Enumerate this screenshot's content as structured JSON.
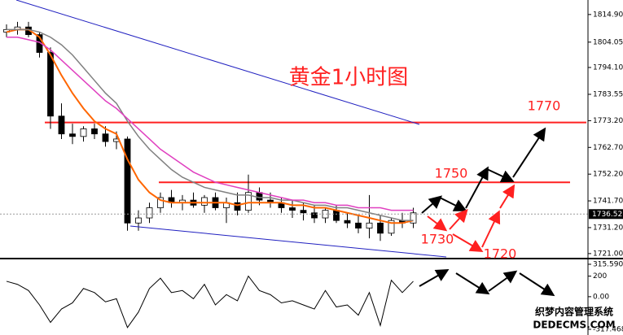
{
  "chart_data": [
    {
      "type": "candlestick",
      "title": "黄金1小时图",
      "open": [
        1808,
        1809,
        1810,
        1807,
        1800,
        1775,
        1768,
        1767,
        1770,
        1768,
        1765,
        1766,
        1733,
        1735,
        1739,
        1743,
        1741,
        1742,
        1740,
        1743,
        1739,
        1741,
        1738,
        1745,
        1742,
        1741,
        1739,
        1738,
        1737,
        1735,
        1738,
        1734,
        1733,
        1731,
        1733,
        1729,
        1734,
        1733
      ],
      "high": [
        1811,
        1812,
        1812,
        1808,
        1802,
        1780,
        1772,
        1771,
        1772,
        1771,
        1769,
        1767,
        1738,
        1741,
        1745,
        1746,
        1744,
        1745,
        1744,
        1745,
        1743,
        1745,
        1752,
        1747,
        1745,
        1743,
        1742,
        1741,
        1740,
        1739,
        1740,
        1737,
        1736,
        1744,
        1736,
        1735,
        1737,
        1739
      ],
      "low": [
        1806,
        1807,
        1806,
        1798,
        1770,
        1766,
        1764,
        1765,
        1766,
        1763,
        1762,
        1730,
        1730,
        1733,
        1737,
        1739,
        1738,
        1739,
        1737,
        1738,
        1733,
        1736,
        1737,
        1740,
        1739,
        1737,
        1735,
        1734,
        1733,
        1733,
        1733,
        1731,
        1729,
        1727,
        1726,
        1728,
        1731,
        1731
      ],
      "close": [
        1809,
        1810,
        1807,
        1800,
        1775,
        1768,
        1767,
        1770,
        1768,
        1765,
        1766,
        1733,
        1735,
        1739,
        1743,
        1741,
        1742,
        1740,
        1743,
        1739,
        1741,
        1738,
        1745,
        1742,
        1741,
        1739,
        1738,
        1737,
        1735,
        1738,
        1734,
        1733,
        1731,
        1733,
        1729,
        1734,
        1733,
        1737
      ],
      "up_color": "#ffffff",
      "down_color": "#000000",
      "outline_color": "#000000",
      "overlays": [
        {
          "color": "#ff6600",
          "values": [
            1808,
            1809,
            1809,
            1806,
            1799,
            1791,
            1784,
            1778,
            1773,
            1770,
            1768,
            1758,
            1750,
            1745,
            1742,
            1741,
            1741,
            1741,
            1741,
            1741,
            1741,
            1740,
            1741,
            1741,
            1741,
            1741,
            1740,
            1740,
            1739,
            1739,
            1738,
            1737,
            1736,
            1735,
            1734,
            1733,
            1733,
            1734
          ]
        },
        {
          "color": "#808080",
          "values": [
            1809,
            1809,
            1809,
            1808,
            1806,
            1803,
            1799,
            1794,
            1789,
            1784,
            1780,
            1773,
            1767,
            1762,
            1758,
            1754,
            1751,
            1749,
            1747,
            1746,
            1745,
            1744,
            1744,
            1743,
            1743,
            1742,
            1742,
            1741,
            1740,
            1740,
            1739,
            1739,
            1738,
            1737,
            1736,
            1735,
            1734,
            1734
          ]
        },
        {
          "color": "#e040c0",
          "values": [
            1806,
            1806,
            1805,
            1804,
            1801,
            1797,
            1793,
            1789,
            1785,
            1781,
            1778,
            1774,
            1770,
            1766,
            1762,
            1759,
            1756,
            1753,
            1751,
            1749,
            1748,
            1747,
            1746,
            1745,
            1744,
            1743,
            1742,
            1742,
            1741,
            1741,
            1740,
            1740,
            1739,
            1739,
            1739,
            1738,
            1738,
            1738
          ]
        }
      ],
      "levels": [
        {
          "value": 1772.5,
          "color": "#ff2020"
        },
        {
          "value": 1749,
          "color": "#ff2020"
        }
      ],
      "last_price": 1736.52,
      "ylim": [
        1720,
        1820.6
      ],
      "yticks": [
        {
          "value": 1814.9,
          "label": "1814.90"
        },
        1804.05,
        {
          "value": 1794.1,
          "label": "1794.10"
        },
        1783.55,
        {
          "value": 1773.2,
          "label": "1773.20"
        },
        {
          "value": 1762.7,
          "label": "1762.70"
        },
        {
          "value": 1752.2,
          "label": "1752.20"
        },
        {
          "value": 1741.7,
          "label": "1741.70"
        },
        {
          "value": 1731.2,
          "label": "1731.20"
        },
        {
          "value": 1721,
          "label": "1721.00"
        }
      ],
      "annotations": [
        "1770",
        "1750",
        "1730",
        "1720"
      ]
    },
    {
      "type": "line",
      "color": "#000000",
      "values": [
        150,
        120,
        60,
        -80,
        -250,
        -120,
        -60,
        80,
        40,
        -50,
        -20,
        -300,
        -150,
        80,
        180,
        40,
        60,
        -20,
        120,
        -80,
        20,
        -40,
        200,
        60,
        20,
        -60,
        -40,
        -80,
        -120,
        60,
        -100,
        -80,
        -180,
        40,
        -280,
        160,
        40,
        150
      ],
      "ylim": [
        -317.468,
        315.5903
      ],
      "yticks": [
        {
          "value": 315.5903,
          "label": "315.5903"
        },
        200,
        {
          "value": 0,
          "label": "0.00"
        },
        {
          "value": -317.468,
          "label": "-317.468"
        }
      ]
    }
  ],
  "watermark": {
    "line1": "织梦内容管理系统",
    "line2": "DEDECMS.COM"
  }
}
